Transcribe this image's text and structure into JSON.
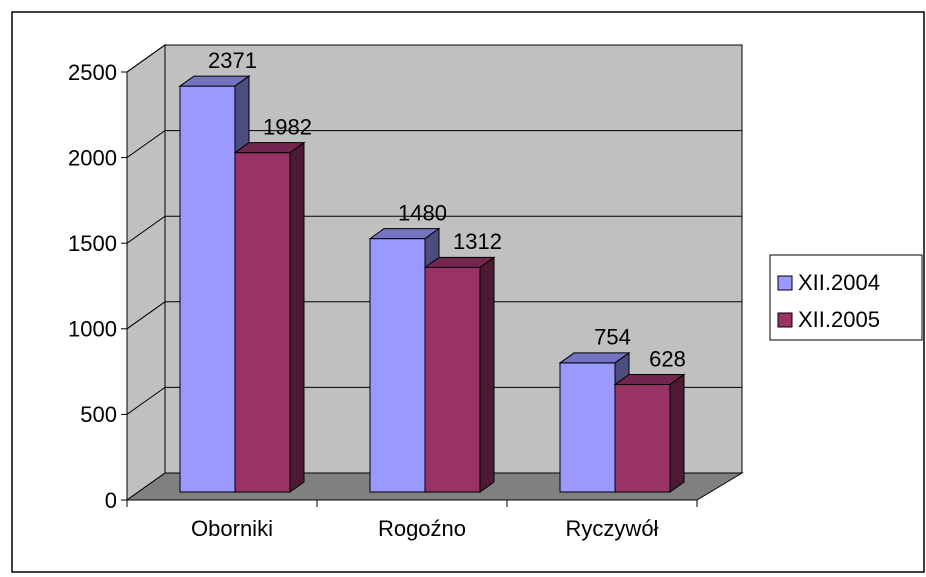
{
  "chart_data": {
    "type": "bar3d",
    "categories": [
      "Oborniki",
      "Rogoźno",
      "Ryczywół"
    ],
    "series": [
      {
        "name": "XII.2004",
        "color": "#9999ff",
        "values": [
          2371,
          1480,
          754
        ]
      },
      {
        "name": "XII.2005",
        "color": "#993366",
        "values": [
          1982,
          1312,
          628
        ]
      }
    ],
    "ylim": [
      0,
      2500
    ],
    "yticks": [
      0,
      500,
      1000,
      1500,
      2000,
      2500
    ],
    "grid": true,
    "legend": "right"
  }
}
